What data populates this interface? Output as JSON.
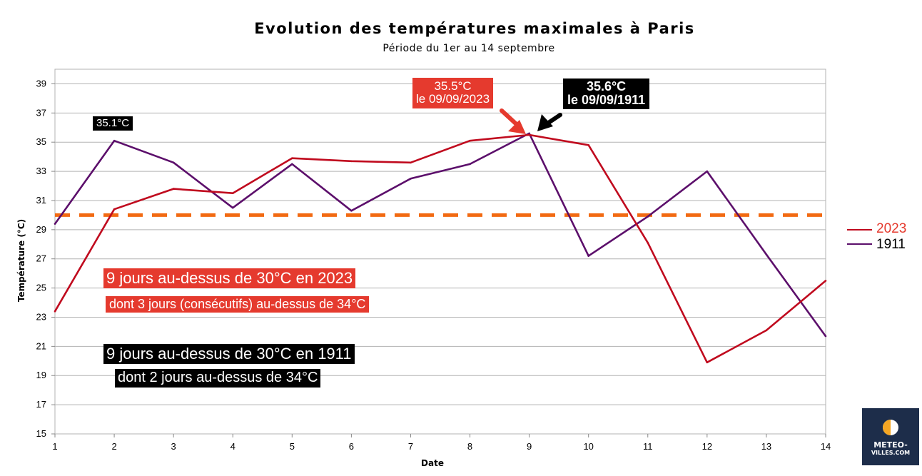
{
  "chart_data": {
    "type": "line",
    "title": "Evolution des températures maximales à Paris",
    "subtitle": "Période du 1er au 14 septembre",
    "xlabel": "Date",
    "ylabel": "Température (°C)",
    "x": [
      1,
      2,
      3,
      4,
      5,
      6,
      7,
      8,
      9,
      10,
      11,
      12,
      13,
      14
    ],
    "x_tick_labels": [
      "1",
      "2",
      "3",
      "4",
      "5",
      "6",
      "7",
      "8",
      "9",
      "10",
      "11",
      "12",
      "13",
      "14"
    ],
    "ylim": [
      15,
      40
    ],
    "y_ticks": [
      15,
      17,
      19,
      21,
      23,
      25,
      27,
      29,
      31,
      33,
      35,
      37,
      39
    ],
    "y_tick_labels": [
      "15",
      "17",
      "19",
      "21",
      "23",
      "25",
      "27",
      "29",
      "31",
      "33",
      "35",
      "37",
      "39"
    ],
    "grid": true,
    "legend_position": "right",
    "series": [
      {
        "name": "2023",
        "color": "#c00a1e",
        "label_color": "#e53a2e",
        "values": [
          23.4,
          30.4,
          31.8,
          31.5,
          33.9,
          33.7,
          33.6,
          35.1,
          35.5,
          34.8,
          28.1,
          19.9,
          22.1,
          25.5
        ]
      },
      {
        "name": "1911",
        "color": "#5c0f6b",
        "label_color": "#000000",
        "values": [
          29.4,
          35.1,
          33.6,
          30.5,
          33.5,
          30.3,
          32.5,
          33.5,
          35.6,
          27.2,
          29.9,
          33.0,
          27.3,
          21.7
        ]
      }
    ],
    "reference_line": {
      "value": 30,
      "color": "#f26a12",
      "style": "dashed"
    },
    "annotations": {
      "max_1911_early": "35.1°C",
      "max_2023_line1": "35.5°C",
      "max_2023_line2": "le 09/09/2023",
      "max_1911_line1": "35.6°C",
      "max_1911_line2": "le 09/09/1911",
      "summary_2023_main": "9 jours au-dessus de 30°C en 2023",
      "summary_2023_sub": "dont 3 jours (consécutifs) au-dessus de 34°C",
      "summary_1911_main": "9 jours au-dessus de 30°C en 1911",
      "summary_1911_sub": "dont 2 jours au-dessus de 34°C"
    },
    "colors": {
      "red_box": "#e53a2e",
      "black_box": "#000000",
      "arrow_red": "#e53a2e",
      "arrow_black": "#000000",
      "grid": "#b3b3b3"
    }
  },
  "logo": {
    "line1": "METEO-",
    "line2": "VILLES.COM",
    "bg_color": "#1d2d4a"
  }
}
